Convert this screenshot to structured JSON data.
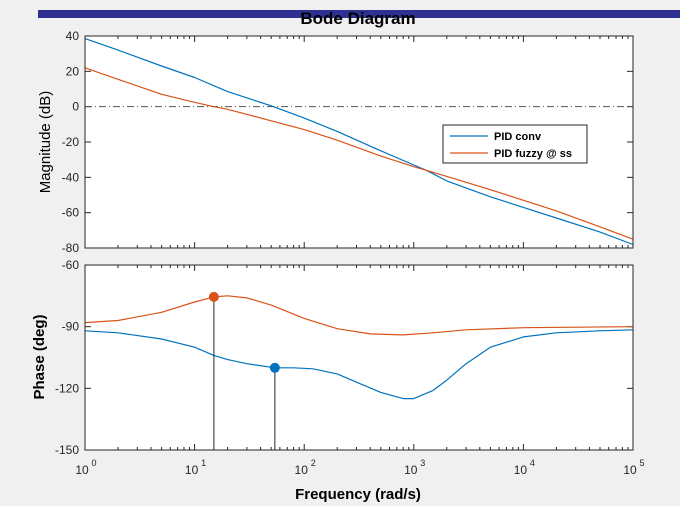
{
  "colors": {
    "series1": "#0072BD",
    "series2": "#D95319",
    "figure_bg": "#F0F0F0",
    "axes_bg": "#FFFFFF",
    "title_bar": "#2E3192"
  },
  "chart_data": [
    {
      "type": "line",
      "panel": "magnitude",
      "title": "Bode Diagram",
      "ylabel": "Magnitude (dB)",
      "xscale": "log",
      "xlim": [
        1,
        100000
      ],
      "ylim": [
        -80,
        40
      ],
      "yticks": [
        40,
        20,
        0,
        -20,
        -40,
        -60,
        -80
      ],
      "grid": false,
      "reference_line_y": 0,
      "legend": {
        "position": "right",
        "entries": [
          "PID conv",
          "PID fuzzy @ ss"
        ]
      },
      "series": [
        {
          "name": "PID conv",
          "color": "#0072BD",
          "x": [
            1,
            2,
            5,
            10,
            20,
            50,
            100,
            200,
            500,
            1000,
            1300,
            2000,
            5000,
            10000,
            20000,
            50000,
            100000
          ],
          "y": [
            38.5,
            32,
            23,
            16.5,
            8.5,
            0.5,
            -6.5,
            -14,
            -25,
            -33,
            -36,
            -42,
            -51,
            -57,
            -63,
            -71,
            -78
          ]
        },
        {
          "name": "PID fuzzy @ ss",
          "color": "#D95319",
          "x": [
            1,
            2,
            5,
            10,
            15,
            20,
            50,
            100,
            200,
            500,
            1000,
            1300,
            2000,
            5000,
            10000,
            20000,
            50000,
            100000
          ],
          "y": [
            22,
            15.5,
            7,
            2.5,
            0,
            -1.5,
            -8,
            -13,
            -19,
            -28,
            -34,
            -36,
            -39.5,
            -47,
            -53,
            -59,
            -68,
            -75
          ]
        }
      ]
    },
    {
      "type": "line",
      "panel": "phase",
      "xlabel": "Frequency  (rad/s)",
      "ylabel": "Phase (deg)",
      "xscale": "log",
      "xlim": [
        1,
        100000
      ],
      "ylim": [
        -150,
        -60
      ],
      "yticks": [
        -60,
        -90,
        -120,
        -150
      ],
      "xticks": [
        {
          "base": "10",
          "exp": "0"
        },
        {
          "base": "10",
          "exp": "1"
        },
        {
          "base": "10",
          "exp": "2"
        },
        {
          "base": "10",
          "exp": "3"
        },
        {
          "base": "10",
          "exp": "4"
        },
        {
          "base": "10",
          "exp": "5"
        }
      ],
      "grid": false,
      "series": [
        {
          "name": "PID conv",
          "color": "#0072BD",
          "x": [
            1,
            2,
            5,
            10,
            15,
            20,
            30,
            54,
            80,
            120,
            200,
            300,
            500,
            800,
            1000,
            1500,
            2000,
            3000,
            5000,
            10000,
            20000,
            50000,
            100000
          ],
          "y": [
            -92,
            -93,
            -96,
            -100,
            -104,
            -106,
            -108,
            -110,
            -110,
            -110.5,
            -113,
            -117,
            -122,
            -125,
            -125,
            -121,
            -116,
            -108,
            -100,
            -95,
            -93,
            -92,
            -91.5
          ],
          "marker": {
            "x": 54,
            "y": -110
          }
        },
        {
          "name": "PID fuzzy @ ss",
          "color": "#D95319",
          "x": [
            1,
            2,
            5,
            10,
            15,
            20,
            30,
            50,
            100,
            200,
            400,
            800,
            1500,
            3000,
            10000,
            100000
          ],
          "y": [
            -88,
            -87,
            -83,
            -78,
            -75.5,
            -75,
            -76,
            -79.5,
            -86,
            -91,
            -93.5,
            -94,
            -93,
            -91.5,
            -90.5,
            -90
          ],
          "marker": {
            "x": 15,
            "y": -75.5
          }
        }
      ]
    }
  ]
}
